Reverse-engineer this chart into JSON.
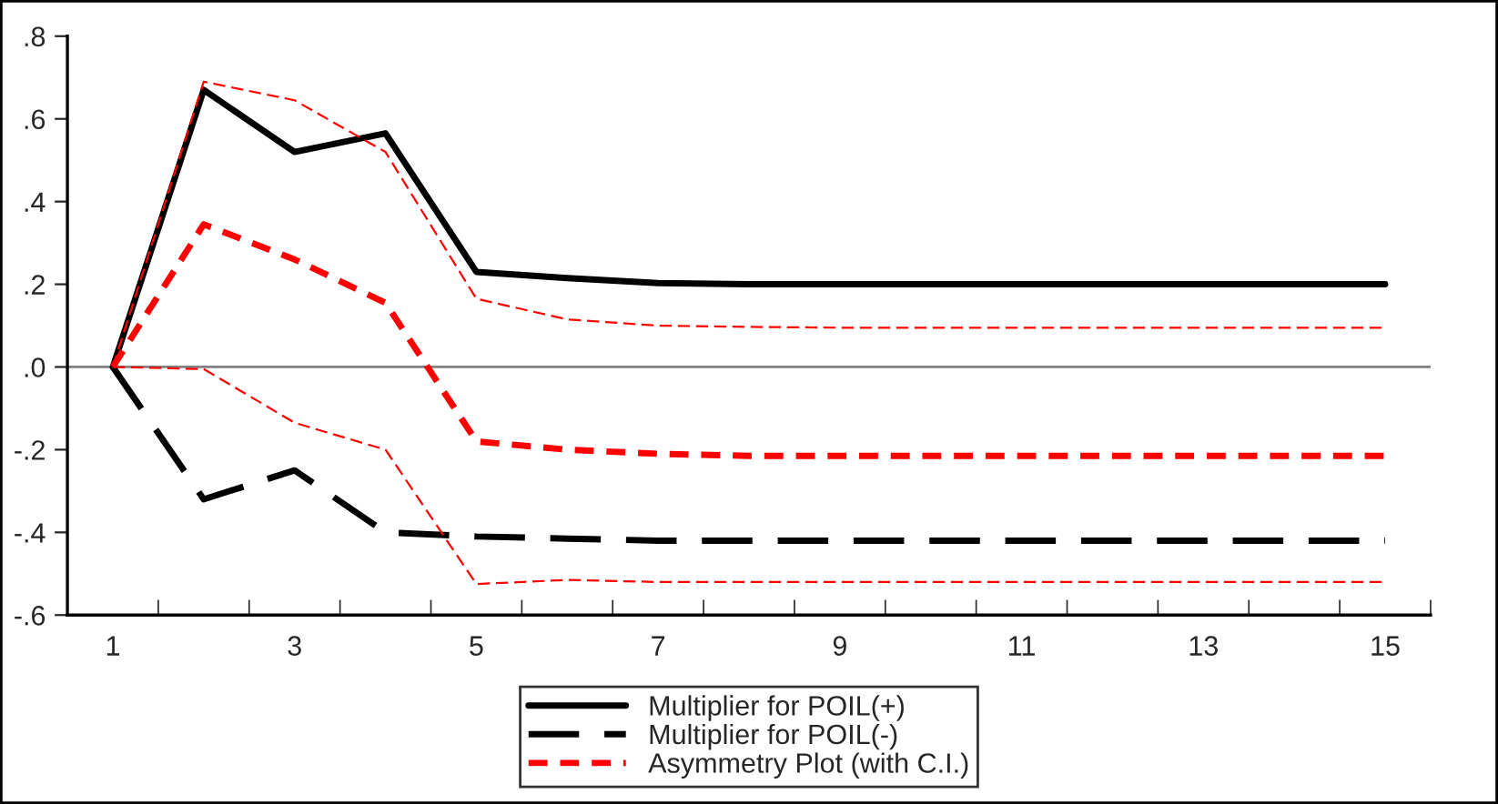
{
  "chart_data": {
    "type": "line",
    "categories": [
      "1",
      null,
      "3",
      null,
      "5",
      null,
      "7",
      null,
      "9",
      null,
      "11",
      null,
      "13",
      null,
      "15"
    ],
    "series": [
      {
        "name": "Multiplier for POIL(+)",
        "color": "#000000",
        "line_style": "solid",
        "values": [
          0,
          0.67,
          0.52,
          0.565,
          0.23,
          0.215,
          0.203,
          0.2,
          0.2,
          0.2,
          0.2,
          0.2,
          0.2,
          0.2,
          0.2
        ]
      },
      {
        "name": "Multiplier for POIL(-)",
        "color": "#000000",
        "line_style": "dashed",
        "values": [
          0,
          -0.32,
          -0.25,
          -0.4,
          -0.41,
          -0.415,
          -0.42,
          -0.42,
          -0.42,
          -0.42,
          -0.42,
          -0.42,
          -0.42,
          -0.42,
          -0.42
        ]
      },
      {
        "name": "Asymmetry Plot (with C.I.)",
        "color": "#ff0000",
        "line_style": "dotted",
        "values": [
          0,
          0.345,
          0.26,
          0.155,
          -0.18,
          -0.2,
          -0.21,
          -0.215,
          -0.215,
          -0.215,
          -0.215,
          -0.215,
          -0.215,
          -0.215,
          -0.215
        ]
      },
      {
        "color": "#ff0000",
        "line_style": "dashed",
        "values": [
          0,
          0.69,
          0.645,
          0.52,
          0.165,
          0.115,
          0.1,
          0.097,
          0.095,
          0.095,
          0.095,
          0.095,
          0.095,
          0.095,
          0.095
        ]
      },
      {
        "color": "#ff0000",
        "line_style": "dashed",
        "values": [
          0,
          -0.005,
          -0.135,
          -0.2,
          -0.525,
          -0.515,
          -0.52,
          -0.52,
          -0.52,
          -0.52,
          -0.52,
          -0.52,
          -0.52,
          -0.52,
          -0.52
        ]
      }
    ],
    "ylim": [
      -0.6,
      0.8
    ],
    "yticks": [
      {
        "value": -0.6,
        "label": "-.6"
      },
      {
        "value": -0.4,
        "label": "-.4"
      },
      {
        "value": -0.2,
        "label": "-.2"
      },
      {
        "value": 0,
        "label": ".0"
      },
      {
        "value": 0.2,
        "label": ".2"
      },
      {
        "value": 0.4,
        "label": ".4"
      },
      {
        "value": 0.6,
        "label": ".6"
      },
      {
        "value": 0.8,
        "label": ".8"
      }
    ],
    "ref_lines": [
      {
        "axis": "y",
        "value": 0,
        "color": "#808080"
      }
    ],
    "grid": false,
    "legend": "bottom"
  }
}
